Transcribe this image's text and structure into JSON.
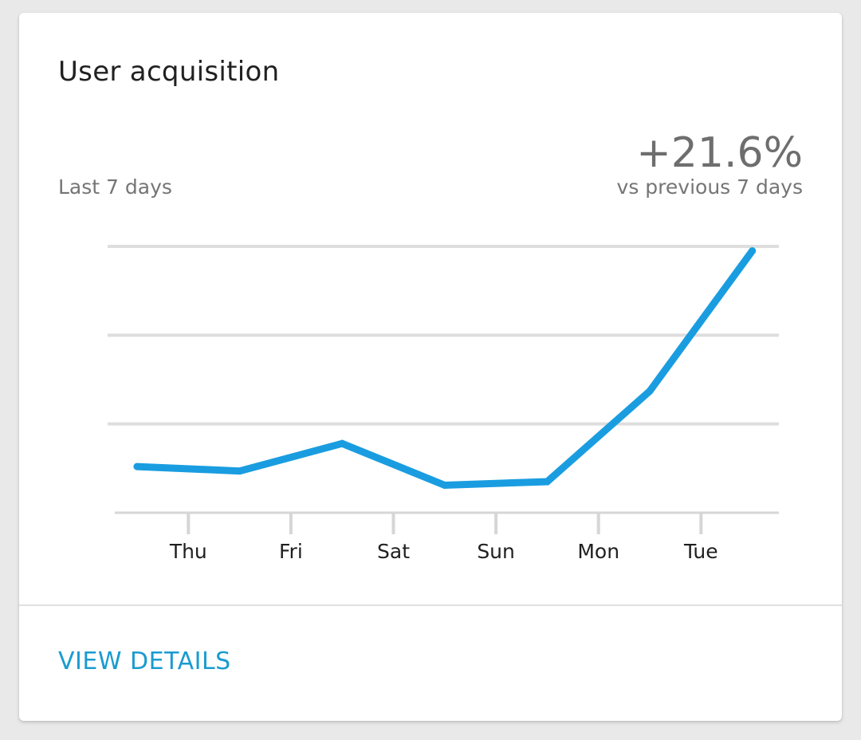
{
  "card": {
    "title": "User acquisition",
    "period_label": "Last 7 days",
    "change_value": "+21.6%",
    "compare_label": "vs previous 7 days",
    "action_label": "VIEW DETAILS"
  },
  "colors": {
    "line": "#1a9de0",
    "action": "#1a9bd0",
    "grid": "#dedede",
    "axis": "#d6d6d6"
  },
  "chart_data": {
    "type": "line",
    "tick_labels": [
      "Thu",
      "Fri",
      "Sat",
      "Sun",
      "Mon",
      "Tue"
    ],
    "x": [
      0,
      1,
      2,
      3,
      4,
      5,
      6
    ],
    "y": [
      0.52,
      0.47,
      0.78,
      0.31,
      0.35,
      1.37,
      2.95
    ],
    "ylim": [
      0,
      3
    ],
    "grid": true,
    "legend": "none"
  }
}
